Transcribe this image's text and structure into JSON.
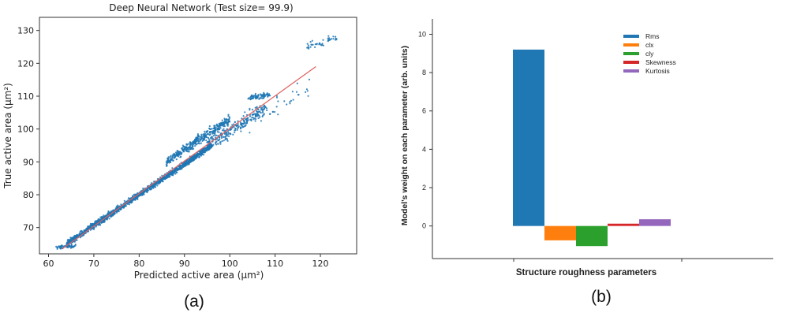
{
  "chart_data": [
    {
      "type": "scatter",
      "title": "Deep Neural Network (Test size= 99.9)",
      "xlabel": "Predicted active area",
      "xlabel_unit": "(μm²)",
      "ylabel": "True active area",
      "ylabel_unit": "(μm²)",
      "xlim": [
        58,
        128
      ],
      "ylim": [
        62,
        134
      ],
      "xticks": [
        60,
        70,
        80,
        90,
        100,
        110,
        120
      ],
      "yticks": [
        70,
        80,
        90,
        100,
        110,
        120,
        130
      ],
      "grid": false,
      "point_color": "#1f77b4",
      "fit_line_color": "#e06060",
      "fit_line": {
        "x": [
          63,
          119
        ],
        "y": [
          63.5,
          119
        ]
      },
      "clusters": [
        {
          "x": [
            61.5,
            66
          ],
          "y_center": [
            63.8,
            64.5
          ],
          "spread": 0.5,
          "n": 60
        },
        {
          "x": [
            64,
            96
          ],
          "y_center": [
            65,
            95
          ],
          "spread": 0.9,
          "n": 1500
        },
        {
          "x": [
            86,
            100
          ],
          "y_center": [
            90,
            103
          ],
          "spread": 1.4,
          "n": 400
        },
        {
          "x": [
            95,
            108
          ],
          "y_center": [
            95,
            106.5
          ],
          "spread": 2.0,
          "n": 250
        },
        {
          "x": [
            104,
            109
          ],
          "y_center": [
            109.5,
            110.5
          ],
          "spread": 0.8,
          "n": 80
        },
        {
          "x": [
            117,
            124
          ],
          "y_center": [
            125,
            128
          ],
          "spread": 1.2,
          "n": 45
        },
        {
          "x": [
            103,
            118
          ],
          "y_center": [
            102,
            112
          ],
          "spread": 3.5,
          "n": 40
        }
      ],
      "panel_label": "(a)"
    },
    {
      "type": "bar",
      "categories": [
        "Rms",
        "clx",
        "cly",
        "Skewness",
        "Kurtosis"
      ],
      "values": [
        9.2,
        -0.75,
        -1.05,
        0.12,
        0.35
      ],
      "colors": [
        "#1f77b4",
        "#ff7f0e",
        "#2ca02c",
        "#d62728",
        "#9467bd"
      ],
      "legend": [
        "Rms",
        "clx",
        "cly",
        "Skewness",
        "Kurtosis"
      ],
      "legend_position": "top-right",
      "xlabel": "Structure roughness parameters",
      "ylabel": "Model's weight on each parameter (arb. units)",
      "ylim": [
        -1.7,
        10.8
      ],
      "yticks": [
        0,
        2,
        4,
        6,
        8,
        10
      ],
      "grid": false,
      "panel_label": "(b)"
    }
  ]
}
